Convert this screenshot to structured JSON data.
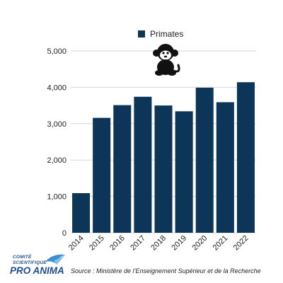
{
  "chart_data": {
    "type": "bar",
    "categories": [
      "2014",
      "2015",
      "2016",
      "2017",
      "2018",
      "2019",
      "2020",
      "2021",
      "2022"
    ],
    "series": [
      {
        "name": "Primates",
        "values": [
          1090,
          3160,
          3510,
          3740,
          3500,
          3340,
          3990,
          3590,
          4140
        ]
      }
    ],
    "title": "",
    "xlabel": "",
    "ylabel": "",
    "ylim": [
      0,
      5000
    ],
    "yticks": [
      "0",
      "1,000",
      "2,000",
      "3,000",
      "4,000",
      "5,000"
    ],
    "grid": true,
    "legend_position": "top-center",
    "bar_color": "#0c3558",
    "grid_color": "#d6d6d6",
    "icon": "monkey-icon"
  },
  "footer": {
    "logo_line1": "COMITÉ",
    "logo_line2": "SCIENTIFIQUE",
    "logo_main": "PRO ANIMA",
    "logo_color": "#1d4f8c",
    "source": "Source : Ministère de l’Enseignement Supérieur et de la Recherche"
  }
}
